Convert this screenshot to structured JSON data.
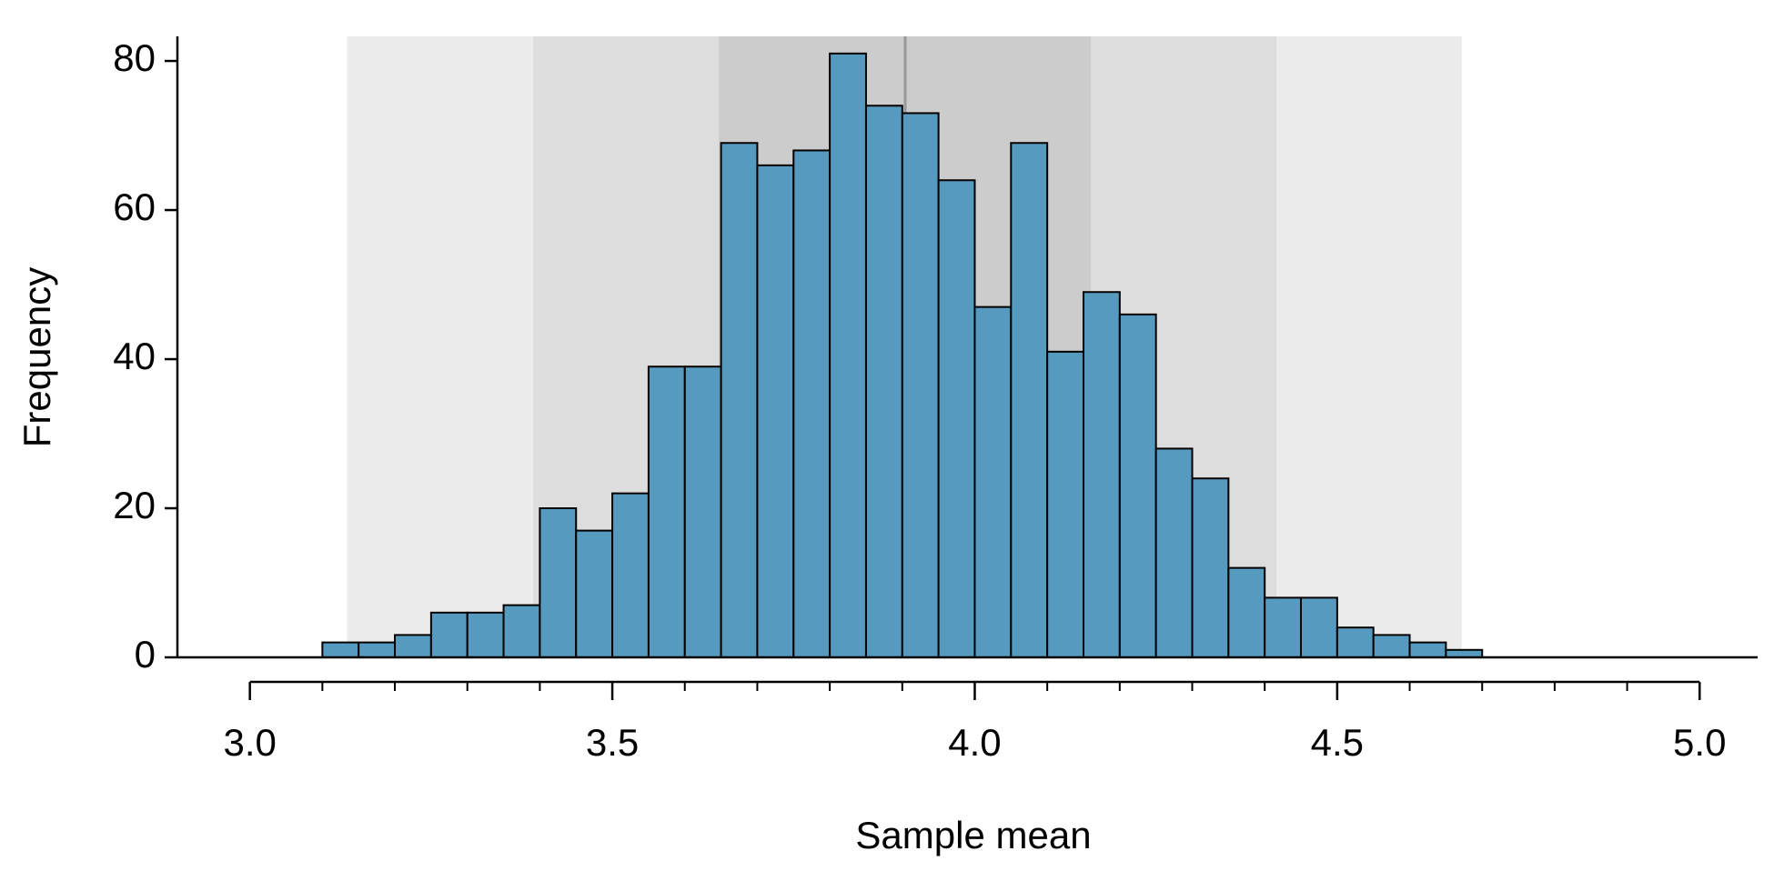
{
  "chart_data": {
    "type": "histogram",
    "x_label": "Sample mean",
    "y_label": "Frequency",
    "bins": [
      3.1,
      3.15,
      3.2,
      3.25,
      3.3,
      3.35,
      3.4,
      3.45,
      3.5,
      3.55,
      3.6,
      3.65,
      3.7,
      3.75,
      3.8,
      3.85,
      3.9,
      3.95,
      4.0,
      4.05,
      4.1,
      4.15,
      4.2,
      4.25,
      4.3,
      4.35,
      4.4,
      4.45,
      4.5,
      4.55,
      4.6,
      4.65,
      4.7
    ],
    "values": [
      2,
      2,
      3,
      6,
      6,
      7,
      20,
      17,
      22,
      39,
      39,
      69,
      66,
      68,
      81,
      74,
      73,
      64,
      47,
      69,
      41,
      49,
      46,
      28,
      24,
      12,
      8,
      8,
      4,
      3,
      2,
      1
    ],
    "color": "#569bbf",
    "xlim": [
      2.9,
      5.08
    ],
    "ylim": [
      0,
      83.3
    ],
    "xticks": [
      {
        "value": 3,
        "label": "3.0"
      },
      {
        "value": 3.5,
        "label": "3.5"
      },
      {
        "value": 4,
        "label": "4.0"
      },
      {
        "value": 4.5,
        "label": "4.5"
      },
      {
        "value": 5,
        "label": "5.0"
      }
    ],
    "xminorticks": [
      3.1,
      3.2,
      3.3,
      3.4,
      3.6,
      3.7,
      3.8,
      3.9,
      4.1,
      4.2,
      4.3,
      4.4,
      4.6,
      4.7,
      4.8,
      4.9
    ],
    "yticks": [
      0,
      20,
      40,
      60,
      80
    ],
    "mean_line": 3.904,
    "bands": [
      {
        "from": 3.134,
        "to": 4.672,
        "color": "#ececec"
      },
      {
        "from": 3.391,
        "to": 4.416,
        "color": "#dddddd"
      },
      {
        "from": 3.647,
        "to": 4.16,
        "color": "#cccccc"
      }
    ]
  }
}
